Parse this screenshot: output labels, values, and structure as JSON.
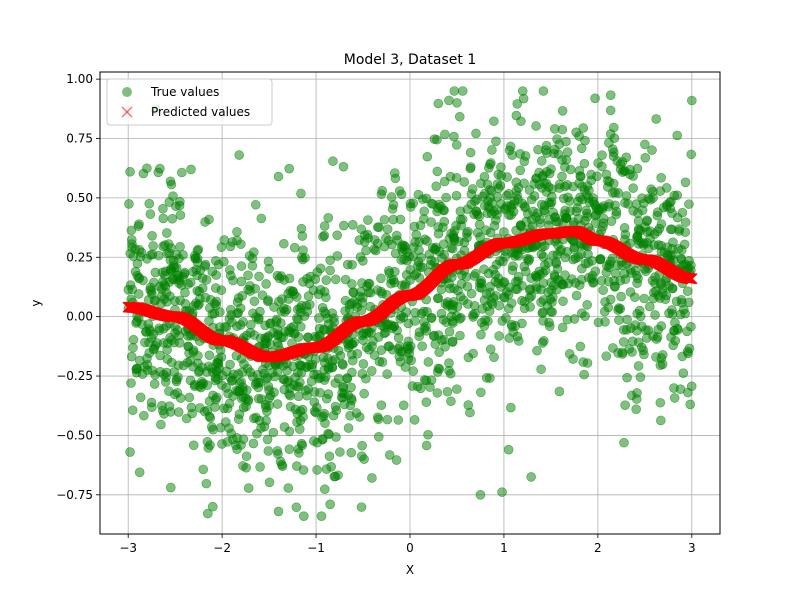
{
  "chart_data": {
    "type": "scatter",
    "title": "Model 3, Dataset 1",
    "xlabel": "X",
    "ylabel": "y",
    "xlim": [
      -3.3,
      3.3
    ],
    "ylim": [
      -0.915,
      1.03
    ],
    "xticks": [
      -3,
      -2,
      -1,
      0,
      1,
      2,
      3
    ],
    "xtick_labels": [
      "−3",
      "−2",
      "−1",
      "0",
      "1",
      "2",
      "3"
    ],
    "yticks": [
      -0.75,
      -0.5,
      -0.25,
      0.0,
      0.25,
      0.5,
      0.75,
      1.0
    ],
    "ytick_labels": [
      "−0.75",
      "−0.50",
      "−0.25",
      "0.00",
      "0.25",
      "0.50",
      "0.75",
      "1.00"
    ],
    "grid": true,
    "legend_position": "top-left",
    "series": [
      {
        "name": "True values",
        "marker": "circle",
        "color": "#008000",
        "opacity": 0.5,
        "x_range": [
          -3,
          3
        ],
        "count": 2000,
        "noise_sd": 0.25,
        "model": "trend + noise",
        "sample_points": [
          {
            "x": -2.98,
            "y": 0.61
          },
          {
            "x": -2.98,
            "y": -0.57
          },
          {
            "x": -2.55,
            "y": 0.57
          },
          {
            "x": -2.1,
            "y": -0.8
          },
          {
            "x": -1.4,
            "y": 0.59
          },
          {
            "x": -1.4,
            "y": -0.82
          },
          {
            "x": -0.85,
            "y": -0.79
          },
          {
            "x": 0.5,
            "y": 0.9
          },
          {
            "x": 0.75,
            "y": -0.75
          },
          {
            "x": 1.05,
            "y": -0.56
          },
          {
            "x": 1.2,
            "y": 0.95
          },
          {
            "x": 3.0,
            "y": 0.91
          }
        ]
      },
      {
        "name": "Predicted values",
        "marker": "x",
        "color": "#ff0000",
        "x": [
          -3.0,
          -2.5,
          -2.0,
          -1.5,
          -1.0,
          -0.5,
          0.0,
          0.5,
          1.0,
          1.5,
          1.75,
          2.0,
          2.5,
          3.0
        ],
        "y": [
          0.04,
          0.0,
          -0.1,
          -0.17,
          -0.13,
          -0.02,
          0.09,
          0.22,
          0.31,
          0.35,
          0.36,
          0.32,
          0.24,
          0.16
        ]
      }
    ]
  }
}
